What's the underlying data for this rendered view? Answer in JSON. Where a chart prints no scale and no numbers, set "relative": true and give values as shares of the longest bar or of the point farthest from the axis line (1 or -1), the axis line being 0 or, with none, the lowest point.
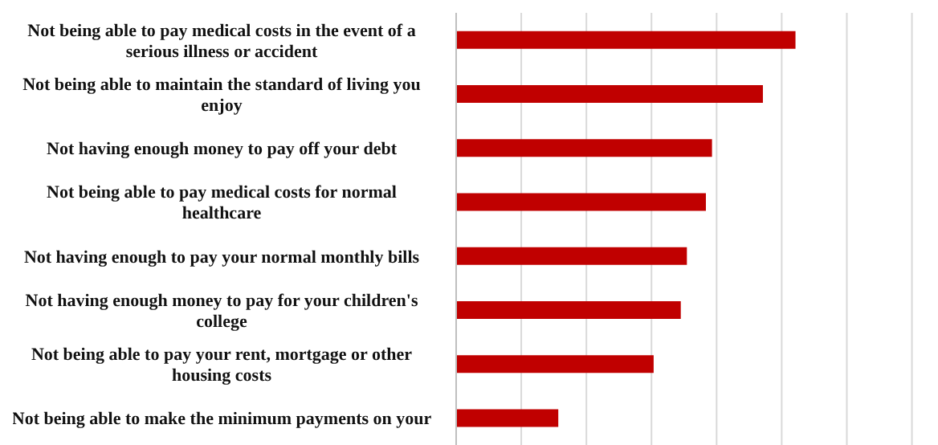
{
  "chart_data": {
    "type": "bar",
    "orientation": "horizontal",
    "relative": true,
    "grid": "x",
    "color": "#c00000",
    "categories": [
      "Not being able to pay medical costs in the event of a serious illness or accident",
      "Not being able to maintain the standard of living you enjoy",
      "Not having enough money to pay off your debt",
      "Not being able to pay medical costs for normal healthcare",
      "Not having enough to pay your normal monthly bills",
      "Not having enough money to pay for your children's college",
      "Not being able to pay your rent, mortgage or other housing costs",
      "Not being able to make the minimum payments on your"
    ],
    "values": [
      1,
      0.904,
      0.754,
      0.736,
      0.68,
      0.662,
      0.582,
      0.301
    ]
  }
}
